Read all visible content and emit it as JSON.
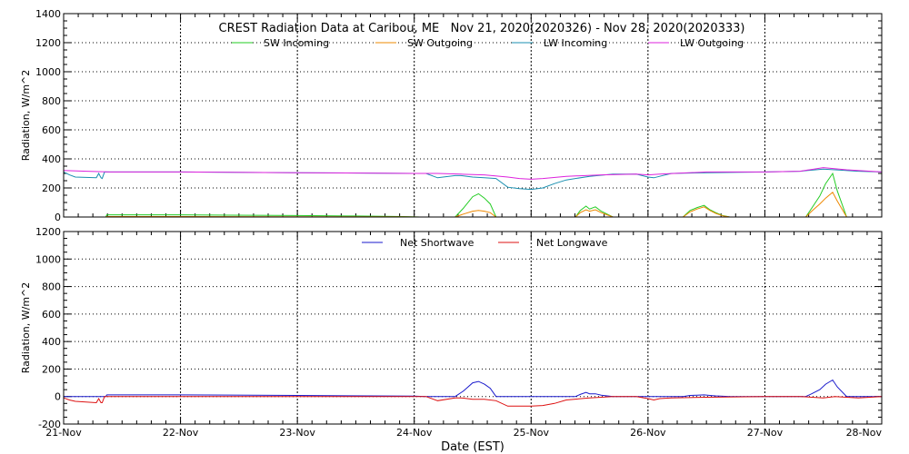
{
  "title": "CREST Radiation Data at Caribou, ME   Nov 21, 2020(2020326) - Nov 28, 2020(2020333)",
  "xlabel": "Date (EST)",
  "colors": {
    "sw_in": "#22cc22",
    "sw_out": "#ee8800",
    "lw_in": "#1a8fb0",
    "lw_out": "#dd22dd",
    "net_sw": "#1a1acc",
    "net_lw": "#dd1111"
  },
  "chart_data": [
    {
      "type": "line",
      "xlabel": "",
      "ylabel": "Radiation, W/m^2",
      "xlim": [
        0,
        7
      ],
      "ylim": [
        0,
        1400
      ],
      "grid": true,
      "legend": "top",
      "x_ticks": [
        "21-Nov",
        "22-Nov",
        "23-Nov",
        "24-Nov",
        "25-Nov",
        "26-Nov",
        "27-Nov",
        "28-Nov"
      ],
      "y_ticks": [
        0,
        200,
        400,
        600,
        800,
        1000,
        1200,
        1400
      ],
      "series": [
        {
          "name": "SW Incoming",
          "color_key": "sw_in",
          "x": [
            0.0,
            0.36,
            0.37,
            1.0,
            2.0,
            2.5,
            2.9,
            3.05,
            3.1,
            3.35,
            3.42,
            3.5,
            3.55,
            3.6,
            3.65,
            3.7,
            4.0,
            4.38,
            4.42,
            4.47,
            4.5,
            4.55,
            4.6,
            4.65,
            4.7,
            5.0,
            5.3,
            5.36,
            5.42,
            5.48,
            5.53,
            5.58,
            5.64,
            5.7,
            6.0,
            6.35,
            6.4,
            6.47,
            6.52,
            6.58,
            6.62,
            6.7,
            7.0
          ],
          "y": [
            0,
            0,
            15,
            15,
            10,
            7,
            3,
            0,
            0,
            0,
            60,
            140,
            160,
            130,
            90,
            0,
            0,
            0,
            45,
            75,
            55,
            70,
            40,
            20,
            0,
            0,
            0,
            45,
            65,
            80,
            50,
            30,
            10,
            0,
            0,
            0,
            60,
            145,
            230,
            300,
            180,
            0,
            0
          ]
        },
        {
          "name": "SW Outgoing",
          "color_key": "sw_out",
          "x": [
            0.0,
            0.36,
            0.37,
            1.0,
            2.0,
            2.5,
            2.9,
            3.05,
            3.1,
            3.35,
            3.42,
            3.5,
            3.55,
            3.6,
            3.65,
            3.7,
            4.0,
            4.38,
            4.42,
            4.47,
            4.5,
            4.55,
            4.6,
            4.65,
            4.7,
            5.0,
            5.3,
            5.36,
            5.42,
            5.48,
            5.53,
            5.58,
            5.64,
            5.7,
            6.0,
            6.35,
            6.4,
            6.47,
            6.52,
            6.58,
            6.62,
            6.7,
            7.0
          ],
          "y": [
            0,
            0,
            3,
            3,
            2,
            2,
            1,
            0,
            0,
            0,
            20,
            40,
            45,
            40,
            30,
            0,
            0,
            0,
            30,
            50,
            40,
            50,
            30,
            15,
            0,
            0,
            0,
            35,
            55,
            70,
            45,
            25,
            8,
            0,
            0,
            0,
            40,
            90,
            130,
            170,
            110,
            0,
            0
          ]
        },
        {
          "name": "LW Incoming",
          "color_key": "lw_in",
          "x": [
            0.0,
            0.05,
            0.1,
            0.28,
            0.3,
            0.32,
            0.33,
            0.35,
            1.0,
            2.0,
            3.0,
            3.1,
            3.2,
            3.35,
            3.4,
            3.5,
            3.6,
            3.7,
            3.8,
            3.9,
            4.0,
            4.1,
            4.2,
            4.3,
            4.5,
            4.7,
            4.9,
            5.0,
            5.05,
            5.1,
            5.2,
            5.5,
            6.0,
            6.3,
            6.5,
            6.6,
            6.8,
            7.0
          ],
          "y": [
            310,
            290,
            275,
            270,
            300,
            270,
            265,
            310,
            310,
            305,
            300,
            300,
            270,
            285,
            285,
            275,
            270,
            265,
            205,
            195,
            190,
            200,
            230,
            255,
            280,
            295,
            295,
            275,
            270,
            280,
            300,
            305,
            310,
            315,
            330,
            325,
            315,
            310
          ]
        },
        {
          "name": "LW Outgoing",
          "color_key": "lw_out",
          "x": [
            0.0,
            0.2,
            0.4,
            1.0,
            2.0,
            3.0,
            3.2,
            3.4,
            3.6,
            3.8,
            3.9,
            4.0,
            4.1,
            4.3,
            4.6,
            4.9,
            5.0,
            5.1,
            5.5,
            6.0,
            6.3,
            6.5,
            6.7,
            7.0
          ],
          "y": [
            320,
            315,
            310,
            310,
            305,
            300,
            300,
            295,
            290,
            275,
            265,
            260,
            265,
            280,
            290,
            295,
            290,
            295,
            310,
            310,
            315,
            340,
            325,
            310
          ]
        }
      ]
    },
    {
      "type": "line",
      "xlabel": "Date (EST)",
      "ylabel": "Radiation, W/m^2",
      "xlim": [
        0,
        7
      ],
      "ylim": [
        -200,
        1200
      ],
      "grid": true,
      "legend": "top",
      "x_ticks": [
        "21-Nov",
        "22-Nov",
        "23-Nov",
        "24-Nov",
        "25-Nov",
        "26-Nov",
        "27-Nov",
        "28-Nov"
      ],
      "y_ticks": [
        -200,
        0,
        200,
        400,
        600,
        800,
        1000,
        1200
      ],
      "series": [
        {
          "name": "Net Shortwave",
          "color_key": "net_sw",
          "x": [
            0.0,
            0.36,
            0.37,
            1.0,
            2.0,
            3.0,
            3.1,
            3.35,
            3.42,
            3.5,
            3.55,
            3.6,
            3.65,
            3.7,
            4.0,
            4.38,
            4.42,
            4.47,
            4.5,
            4.55,
            4.6,
            4.65,
            4.7,
            5.0,
            5.3,
            5.36,
            5.42,
            5.48,
            5.53,
            5.58,
            5.64,
            5.7,
            6.0,
            6.35,
            6.4,
            6.47,
            6.52,
            6.58,
            6.62,
            6.7,
            7.0
          ],
          "y": [
            0,
            0,
            12,
            12,
            8,
            3,
            0,
            0,
            40,
            100,
            110,
            90,
            60,
            0,
            0,
            0,
            15,
            30,
            20,
            20,
            10,
            5,
            0,
            0,
            0,
            8,
            10,
            12,
            8,
            5,
            2,
            0,
            0,
            0,
            20,
            50,
            90,
            120,
            70,
            0,
            0
          ]
        },
        {
          "name": "Net Longwave",
          "color_key": "net_lw",
          "x": [
            0.0,
            0.05,
            0.1,
            0.28,
            0.3,
            0.32,
            0.33,
            0.35,
            1.0,
            2.0,
            3.0,
            3.1,
            3.2,
            3.35,
            3.4,
            3.5,
            3.6,
            3.7,
            3.8,
            3.9,
            4.0,
            4.1,
            4.2,
            4.3,
            4.5,
            4.7,
            4.9,
            5.0,
            5.05,
            5.1,
            5.2,
            5.5,
            6.0,
            6.3,
            6.5,
            6.6,
            6.8,
            7.0
          ],
          "y": [
            -10,
            -25,
            -35,
            -45,
            -15,
            -45,
            -45,
            0,
            0,
            0,
            0,
            0,
            -30,
            -10,
            -10,
            -20,
            -20,
            -30,
            -70,
            -70,
            -70,
            -65,
            -50,
            -25,
            -10,
            0,
            0,
            -15,
            -25,
            -15,
            -10,
            -5,
            0,
            0,
            -10,
            0,
            -10,
            0
          ]
        }
      ]
    }
  ]
}
